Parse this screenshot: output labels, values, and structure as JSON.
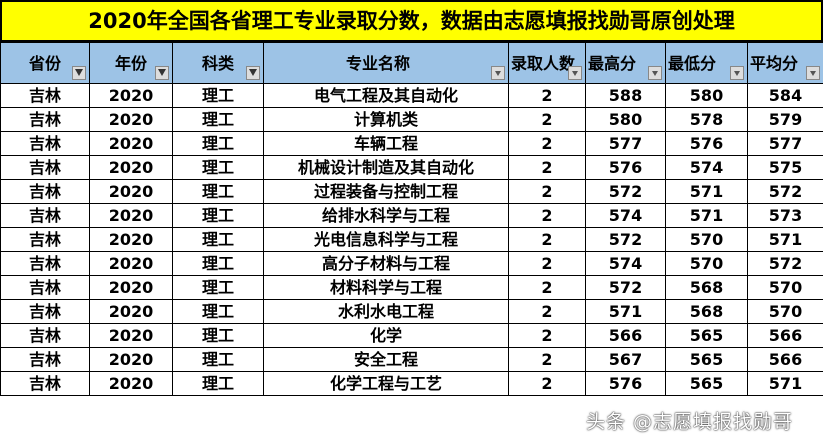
{
  "title": "2020年全国各省理工专业录取分数，数据由志愿填报找勋哥原创处理",
  "headers": [
    "省份",
    "年份",
    "科类",
    "专业名称",
    "录取人数",
    "最高分",
    "最低分",
    "平均分"
  ],
  "filter_icons": [
    "funnel-filter",
    "funnel-filter",
    "funnel-filter",
    "dropdown",
    "dropdown",
    "dropdown",
    "dropdown",
    "dropdown"
  ],
  "rows": [
    [
      "吉林",
      "2020",
      "理工",
      "电气工程及其自动化",
      "2",
      "588",
      "580",
      "584"
    ],
    [
      "吉林",
      "2020",
      "理工",
      "计算机类",
      "2",
      "580",
      "578",
      "579"
    ],
    [
      "吉林",
      "2020",
      "理工",
      "车辆工程",
      "2",
      "577",
      "576",
      "577"
    ],
    [
      "吉林",
      "2020",
      "理工",
      "机械设计制造及其自动化",
      "2",
      "576",
      "574",
      "575"
    ],
    [
      "吉林",
      "2020",
      "理工",
      "过程装备与控制工程",
      "2",
      "572",
      "571",
      "572"
    ],
    [
      "吉林",
      "2020",
      "理工",
      "给排水科学与工程",
      "2",
      "574",
      "571",
      "573"
    ],
    [
      "吉林",
      "2020",
      "理工",
      "光电信息科学与工程",
      "2",
      "572",
      "570",
      "571"
    ],
    [
      "吉林",
      "2020",
      "理工",
      "高分子材料与工程",
      "2",
      "574",
      "570",
      "572"
    ],
    [
      "吉林",
      "2020",
      "理工",
      "材料科学与工程",
      "2",
      "572",
      "568",
      "570"
    ],
    [
      "吉林",
      "2020",
      "理工",
      "水利水电工程",
      "2",
      "571",
      "568",
      "570"
    ],
    [
      "吉林",
      "2020",
      "理工",
      "化学",
      "2",
      "566",
      "565",
      "566"
    ],
    [
      "吉林",
      "2020",
      "理工",
      "安全工程",
      "2",
      "567",
      "565",
      "566"
    ],
    [
      "吉林",
      "2020",
      "理工",
      "化学工程与工艺",
      "2",
      "576",
      "565",
      "571"
    ]
  ],
  "watermark": "头条 @志愿填报找勋哥"
}
